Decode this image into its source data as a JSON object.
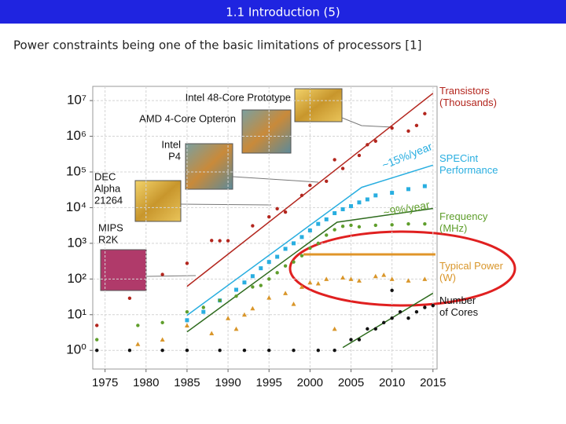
{
  "chart_data": {
    "type": "scatter",
    "title": "1.1 Introduction (5)",
    "subtitle": "Power constraints being one of the basic limitations of processors [1]",
    "log_y": true,
    "grid": true,
    "xlim": [
      1973.5,
      2015.5
    ],
    "ylim": [
      0.3,
      25000000
    ],
    "xticks": [
      1975,
      1980,
      1985,
      1990,
      1995,
      2000,
      2005,
      2010,
      2015
    ],
    "yticks": [
      {
        "value": 1,
        "label": "10⁰"
      },
      {
        "value": 10,
        "label": "10¹"
      },
      {
        "value": 100,
        "label": "10²"
      },
      {
        "value": 1000,
        "label": "10³"
      },
      {
        "value": 10000,
        "label": "10⁴"
      },
      {
        "value": 100000,
        "label": "10⁵"
      },
      {
        "value": 1000000,
        "label": "10⁶"
      },
      {
        "value": 10000000,
        "label": "10⁷"
      }
    ],
    "series": [
      {
        "name": "Transistors (Thousands)",
        "color": "#b3261e",
        "marker": "circle",
        "x": [
          1974,
          1978,
          1982,
          1985,
          1988,
          1989,
          1990,
          1993,
          1995,
          1996,
          1997,
          1999,
          2000,
          2002,
          2003,
          2004,
          2006,
          2007,
          2008,
          2010,
          2012,
          2013,
          2014
        ],
        "values": [
          5,
          29,
          134,
          275,
          1200,
          1180,
          1180,
          3100,
          5500,
          9300,
          7500,
          22000,
          42000,
          55000,
          220000,
          125000,
          290000,
          580000,
          730000,
          1700000,
          1400000,
          2000000,
          4300000
        ]
      },
      {
        "name": "SPECint Performance",
        "color": "#29aee0",
        "marker": "square",
        "x": [
          1985,
          1987,
          1989,
          1991,
          1992,
          1993,
          1994,
          1995,
          1996,
          1997,
          1998,
          1999,
          2000,
          2001,
          2002,
          2003,
          2004,
          2005,
          2006,
          2007,
          2008,
          2010,
          2012,
          2014
        ],
        "values": [
          7,
          12,
          25,
          50,
          80,
          120,
          200,
          300,
          420,
          700,
          1000,
          1500,
          2300,
          3500,
          4700,
          7000,
          9000,
          11000,
          14000,
          17000,
          22000,
          26000,
          33000,
          40000
        ]
      },
      {
        "name": "Frequency (MHz)",
        "color": "#5f9e2c",
        "marker": "circle",
        "x": [
          1974,
          1979,
          1982,
          1985,
          1987,
          1989,
          1991,
          1993,
          1994,
          1995,
          1996,
          1997,
          1998,
          1999,
          2000,
          2001,
          2002,
          2003,
          2004,
          2005,
          2006,
          2008,
          2010,
          2012,
          2014
        ],
        "values": [
          2,
          5,
          6,
          12,
          16,
          25,
          33,
          60,
          66,
          100,
          150,
          233,
          300,
          450,
          733,
          1000,
          1700,
          2400,
          3000,
          3200,
          2900,
          3200,
          3300,
          3500,
          3500
        ]
      },
      {
        "name": "Typical Power (W)",
        "color": "#d9962a",
        "marker": "triangle",
        "x": [
          1979,
          1982,
          1985,
          1988,
          1990,
          1991,
          1992,
          1993,
          1995,
          1997,
          1998,
          1999,
          2000,
          2001,
          2002,
          2003,
          2004,
          2005,
          2006,
          2008,
          2009,
          2010,
          2012,
          2014
        ],
        "values": [
          1.5,
          2,
          5,
          3,
          8,
          4,
          10,
          15,
          30,
          40,
          20,
          60,
          80,
          75,
          100,
          4,
          110,
          100,
          90,
          120,
          130,
          100,
          90,
          100
        ]
      },
      {
        "name": "Number of Cores",
        "color": "#111111",
        "marker": "circle",
        "x": [
          1974,
          1978,
          1982,
          1985,
          1989,
          1992,
          1995,
          1998,
          2001,
          2003,
          2005,
          2006,
          2007,
          2008,
          2009,
          2010,
          2010,
          2011,
          2012,
          2013,
          2014,
          2015
        ],
        "values": [
          1,
          1,
          1,
          1,
          1,
          1,
          1,
          1,
          1,
          1,
          2,
          2,
          4,
          4,
          6,
          8,
          48,
          12,
          8,
          12,
          16,
          18
        ]
      }
    ],
    "trend_lines": [
      {
        "color": "#b3261e",
        "x": [
          1985,
          2015
        ],
        "y": [
          62,
          16000000
        ]
      },
      {
        "color": "#29aee0",
        "x": [
          1985,
          2006.3,
          2015
        ],
        "y": [
          9.6,
          37000,
          155000
        ]
      },
      {
        "color": "#2e6b1e",
        "x": [
          1985,
          2003.3,
          2015
        ],
        "y": [
          3.3,
          3900,
          9500
        ]
      },
      {
        "color": "#e0952a",
        "x": [
          1999.2,
          2015.3
        ],
        "y": [
          490,
          490
        ]
      },
      {
        "color": "#2e6b1e",
        "x": [
          2004,
          2015
        ],
        "y": [
          1.2,
          40
        ]
      }
    ],
    "rates": [
      "~15%/year",
      "~9%/year"
    ],
    "chip_labels": [
      [
        "Intel 48-Core Prototype"
      ],
      [
        "AMD 4-Core Opteron"
      ],
      [
        "Intel",
        "P4"
      ],
      [
        "DEC",
        "Alpha",
        "21264"
      ],
      [
        "MIPS",
        "R2K"
      ]
    ]
  }
}
